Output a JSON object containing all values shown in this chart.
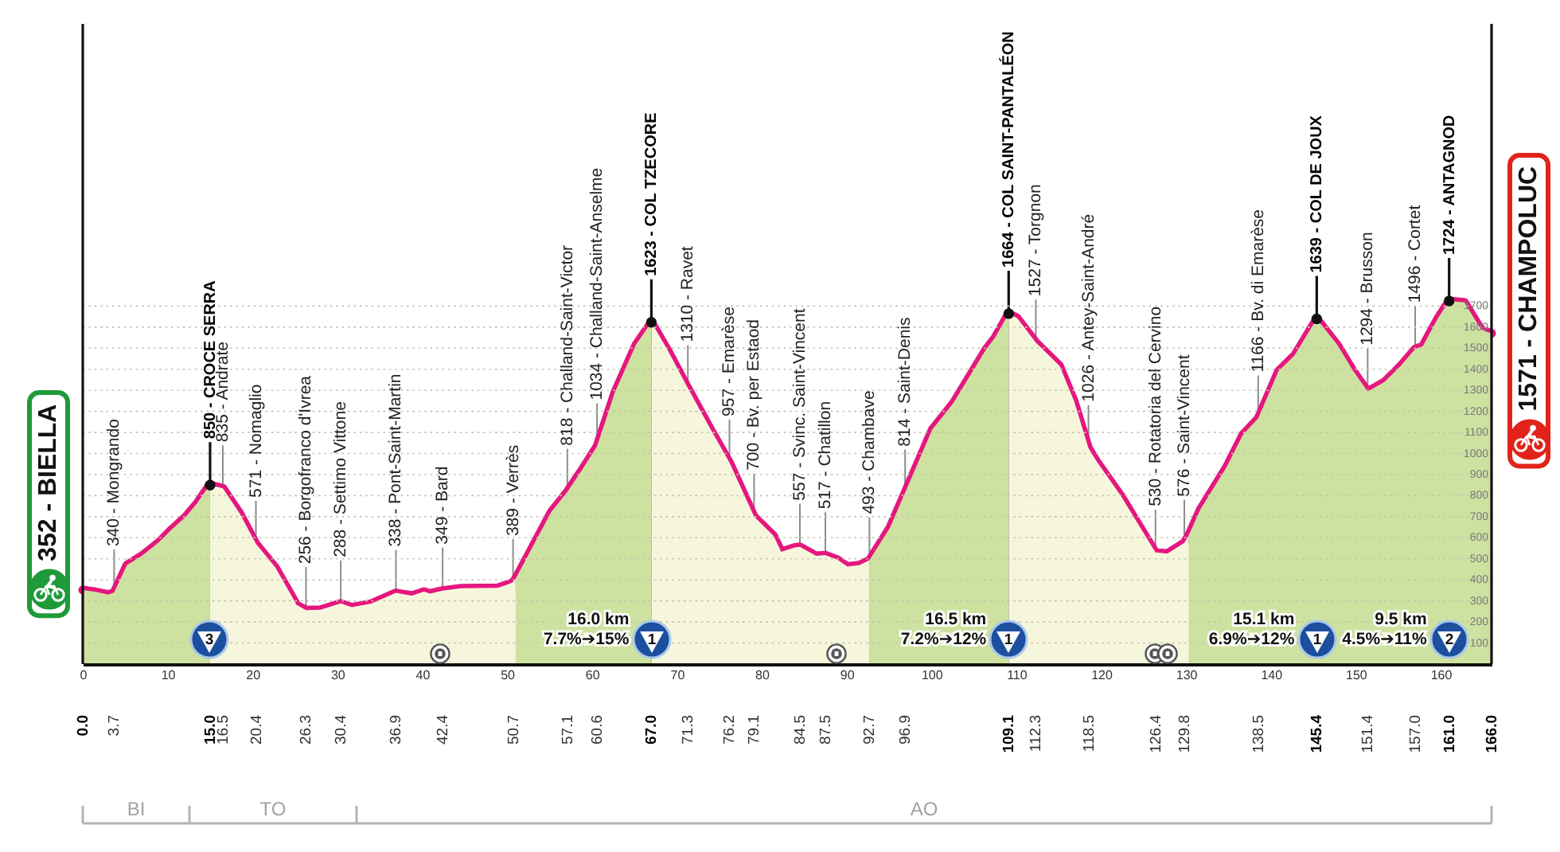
{
  "chart_data": {
    "type": "area",
    "series": [
      {
        "color": "#cde2a0",
        "x": [
          0,
          1.5,
          3.0,
          3.7,
          5.2,
          7.0,
          9.0,
          10.5,
          12.1,
          13.5,
          14.7,
          15.0
        ],
        "values": [
          352,
          343,
          330,
          340,
          470,
          515,
          579,
          640,
          698,
          765,
          836,
          850
        ]
      },
      {
        "color": "#f6f6dd",
        "x": [
          15.0,
          16.5,
          18.5,
          20.4,
          22.7,
          25.2,
          26.3,
          28.0,
          30.4,
          31.7,
          34.0,
          36.9,
          38.8,
          40.2,
          40.9,
          42.4,
          44.6,
          48.9,
          50.2,
          50.7,
          51.0
        ],
        "values": [
          850,
          835,
          715,
          571,
          458,
          281,
          256,
          258,
          288,
          270,
          287,
          338,
          325,
          344,
          335,
          349,
          360,
          362,
          380,
          389,
          405
        ]
      },
      {
        "color": "#cde2a0",
        "x": [
          51.0,
          52.7,
          55.2,
          57.1,
          58.8,
          60.6,
          62.7,
          65.2,
          67.0
        ],
        "values": [
          405,
          533,
          722,
          818,
          920,
          1034,
          1290,
          1517,
          1623
        ]
      },
      {
        "color": "#f6f6dd",
        "x": [
          67.0,
          68.9,
          71.3,
          73.9,
          76.2,
          79.1,
          81.4,
          82.3,
          83.9,
          84.5,
          86.4,
          87.5,
          88.9,
          90.1,
          91.5,
          92.7
        ],
        "values": [
          1623,
          1492,
          1310,
          1120,
          957,
          700,
          609,
          533,
          554,
          557,
          514,
          517,
          496,
          463,
          470,
          493
        ]
      },
      {
        "color": "#cde2a0",
        "x": [
          92.7,
          95.1,
          96.9,
          100.1,
          102.6,
          106.4,
          107.5,
          109.1
        ],
        "values": [
          493,
          647,
          814,
          1114,
          1240,
          1492,
          1550,
          1664
        ]
      },
      {
        "color": "#f6f6dd",
        "x": [
          109.1,
          110.1,
          112.3,
          115.1,
          116.8,
          118.5,
          119.5,
          122.3,
          124.8,
          126.4,
          127.8,
          129.8,
          130.3
        ],
        "values": [
          1664,
          1643,
          1527,
          1416,
          1250,
          1026,
          960,
          800,
          635,
          530,
          525,
          576,
          610
        ]
      },
      {
        "color": "#cde2a0",
        "x": [
          130.3,
          131.7,
          134.8,
          136.7,
          138.5,
          140.9,
          142.8,
          145.4,
          147.8,
          149.7,
          151.4,
          153.4,
          155.3,
          157.0,
          157.9,
          159.7,
          161.0,
          162.8,
          164.7,
          165.3,
          166.0
        ],
        "values": [
          610,
          735,
          937,
          1089,
          1166,
          1391,
          1466,
          1639,
          1517,
          1391,
          1294,
          1340,
          1416,
          1496,
          1510,
          1643,
          1724,
          1718,
          1592,
          1580,
          1571
        ]
      },
      {
        "type": "line",
        "color": "#e5177e",
        "x": [
          0,
          1.5,
          3.0,
          3.7,
          5.2,
          7.0,
          9.0,
          10.5,
          12.1,
          13.5,
          14.7,
          15.0,
          16.5,
          18.5,
          20.4,
          22.7,
          25.2,
          26.3,
          28.0,
          30.4,
          31.7,
          34.0,
          36.9,
          38.8,
          40.2,
          40.9,
          42.4,
          44.6,
          48.9,
          50.2,
          50.7,
          51.0,
          52.7,
          55.2,
          57.1,
          58.8,
          60.6,
          62.7,
          65.2,
          67.0,
          68.9,
          71.3,
          73.9,
          76.2,
          79.1,
          81.4,
          82.3,
          83.9,
          84.5,
          86.4,
          87.5,
          88.9,
          90.1,
          91.5,
          92.7,
          95.1,
          96.9,
          100.1,
          102.6,
          106.4,
          107.5,
          109.1,
          110.1,
          112.3,
          115.1,
          116.8,
          118.5,
          119.5,
          122.3,
          124.8,
          126.4,
          127.8,
          129.8,
          130.3,
          131.7,
          134.8,
          136.7,
          138.5,
          140.9,
          142.8,
          145.4,
          147.8,
          149.7,
          151.4,
          153.4,
          155.3,
          157.0,
          157.9,
          159.7,
          161.0,
          162.8,
          164.7,
          165.3,
          166.0
        ],
        "values": [
          352,
          343,
          330,
          340,
          470,
          515,
          579,
          640,
          698,
          765,
          836,
          850,
          835,
          715,
          571,
          458,
          281,
          256,
          258,
          288,
          270,
          287,
          338,
          325,
          344,
          335,
          349,
          360,
          362,
          380,
          389,
          405,
          533,
          722,
          818,
          920,
          1034,
          1290,
          1517,
          1623,
          1492,
          1310,
          1120,
          957,
          700,
          609,
          533,
          554,
          557,
          514,
          517,
          496,
          463,
          470,
          493,
          647,
          814,
          1114,
          1240,
          1492,
          1550,
          1664,
          1643,
          1527,
          1416,
          1250,
          1026,
          960,
          800,
          635,
          530,
          525,
          576,
          610,
          735,
          937,
          1089,
          1166,
          1391,
          1466,
          1639,
          1517,
          1391,
          1294,
          1340,
          1416,
          1496,
          1510,
          1643,
          1724,
          1718,
          1592,
          1580,
          1571
        ]
      }
    ],
    "xlim": [
      0,
      166
    ],
    "xticks": [
      0,
      10,
      20,
      30,
      40,
      50,
      60,
      70,
      80,
      90,
      100,
      110,
      120,
      130,
      140,
      150,
      160
    ],
    "x2lim": [
      0,
      166
    ],
    "x2ticks": [
      {
        "value": 0,
        "label": "0.0"
      },
      3.7,
      {
        "value": 15,
        "label": "15.0"
      },
      16.5,
      20.4,
      26.3,
      30.4,
      36.9,
      42.4,
      50.7,
      57.1,
      60.6,
      {
        "value": 67,
        "label": "67.0"
      },
      71.3,
      76.2,
      79.1,
      84.5,
      87.5,
      92.7,
      96.9,
      109.1,
      112.3,
      118.5,
      126.4,
      129.8,
      138.5,
      145.4,
      151.4,
      {
        "value": 157,
        "label": "157.0"
      },
      {
        "value": 161,
        "label": "161.0"
      },
      {
        "value": 166,
        "label": "166.0"
      }
    ],
    "ylim": [
      0,
      3040
    ],
    "yticks": [
      100,
      200,
      300,
      400,
      500,
      600,
      700,
      800,
      900,
      1000,
      1100,
      1200,
      1300,
      1400,
      1500,
      1600,
      1700
    ],
    "grid": "y",
    "annotations": [
      {
        "text": "352 - BIELLA",
        "x": 0,
        "y": 352
      },
      {
        "text": "340 - Mongrando",
        "x": 3.7,
        "y": 340
      },
      {
        "text": "850 - CROCE SERRA",
        "x": 15.0,
        "y": 850
      },
      {
        "text": "835 - Andrate",
        "x": 16.5,
        "y": 835
      },
      {
        "text": "571 - Nomaglio",
        "x": 20.4,
        "y": 571
      },
      {
        "text": "256 - Borgofranco d'Ivrea",
        "x": 26.3,
        "y": 256
      },
      {
        "text": "288 - Settimo Vittone",
        "x": 30.4,
        "y": 288
      },
      {
        "text": "338 - Pont-Saint-Martin",
        "x": 36.9,
        "y": 338
      },
      {
        "text": "349 - Bard",
        "x": 42.4,
        "y": 349
      },
      {
        "text": "389 - Verrès",
        "x": 50.7,
        "y": 389
      },
      {
        "text": "818 - Challand-Saint-Victor",
        "x": 57.1,
        "y": 818
      },
      {
        "text": "1034 - Challand-Saint-Anselme",
        "x": 60.6,
        "y": 1034
      },
      {
        "text": "1623 - COL TZECORE",
        "x": 67.0,
        "y": 1623
      },
      {
        "text": "1310 - Ravet",
        "x": 71.3,
        "y": 1310
      },
      {
        "text": "957 - Emarèse",
        "x": 76.2,
        "y": 957
      },
      {
        "text": "700 - Bv. per Estaod",
        "x": 79.1,
        "y": 700
      },
      {
        "text": "557 - Svinc. Saint-Vincent",
        "x": 84.5,
        "y": 557
      },
      {
        "text": "517 - Chatillon",
        "x": 87.5,
        "y": 517
      },
      {
        "text": "493 - Chambave",
        "x": 92.7,
        "y": 493
      },
      {
        "text": "814 - Saint-Denis",
        "x": 96.9,
        "y": 814
      },
      {
        "text": "1664 - COL SAINT-PANTALÉON",
        "x": 109.1,
        "y": 1664
      },
      {
        "text": "1527 - Torgnon",
        "x": 112.3,
        "y": 1527
      },
      {
        "text": "1026 - Antey-Saint-André",
        "x": 118.5,
        "y": 1026
      },
      {
        "text": "530 - Rotatoria del Cervino",
        "x": 126.4,
        "y": 530
      },
      {
        "text": "576 - Saint-Vincent",
        "x": 129.8,
        "y": 576
      },
      {
        "text": "1166 - Bv. di Emarèse",
        "x": 138.5,
        "y": 1166
      },
      {
        "text": "1639 - COL DE JOUX",
        "x": 145.4,
        "y": 1639
      },
      {
        "text": "1294 - Brusson",
        "x": 151.4,
        "y": 1294
      },
      {
        "text": "1496 - Cortet",
        "x": 157.0,
        "y": 1496
      },
      {
        "text": "1724 - ANTAGNOD",
        "x": 161.0,
        "y": 1724
      },
      {
        "text": "1571 - CHAMPOLUC",
        "x": 166.0,
        "y": 1571
      },
      {
        "text": "3",
        "x": 15.0
      },
      {
        "text": "1",
        "x": 67.0
      },
      {
        "text": "1",
        "x": 109.1
      },
      {
        "text": "1",
        "x": 145.4
      },
      {
        "text": "2",
        "x": 161.0
      },
      "16.0 km\n7.7%➔15%",
      "16.5 km\n7.2%➔12%",
      "15.1 km\n6.9%➔12%",
      "9.5 km\n4.5%➔11%",
      "BI",
      "TO",
      "AO"
    ]
  }
}
